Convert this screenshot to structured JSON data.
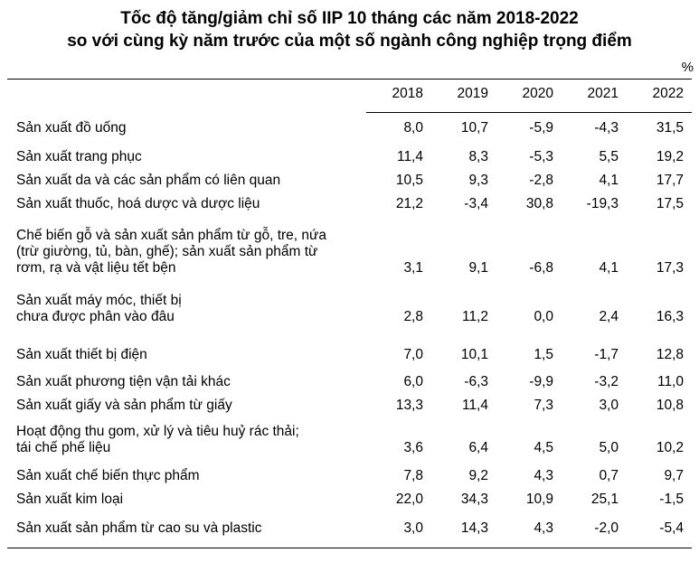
{
  "chart_data": {
    "type": "table",
    "title": [
      "Tốc độ tăng/giảm chỉ số IIP 10 tháng các năm 2018-2022",
      "so với cùng kỳ năm trước của một số ngành công nghiệp trọng điểm"
    ],
    "unit": "%",
    "columns": [
      "2018",
      "2019",
      "2020",
      "2021",
      "2022"
    ],
    "rows": [
      {
        "label": [
          "Sản xuất đồ uống"
        ],
        "values": [
          "8,0",
          "10,7",
          "-5,9",
          "-4,3",
          "31,5"
        ]
      },
      {
        "label": [
          "Sản xuất trang phục"
        ],
        "values": [
          "11,4",
          "8,3",
          "-5,3",
          "5,5",
          "19,2"
        ]
      },
      {
        "label": [
          "Sản xuất da và các sản phẩm có liên quan"
        ],
        "values": [
          "10,5",
          "9,3",
          "-2,8",
          "4,1",
          "17,7"
        ]
      },
      {
        "label": [
          "Sản xuất thuốc, hoá dược và dược liệu"
        ],
        "values": [
          "21,2",
          "-3,4",
          "30,8",
          "-19,3",
          "17,5"
        ]
      },
      {
        "label": [
          "Chế biến gỗ và sản xuất sản phẩm từ gỗ, tre, nứa",
          "(trừ giường, tủ, bàn, ghế); sản xuất sản phẩm từ",
          "rơm, rạ và vật liệu tết bện"
        ],
        "values": [
          "3,1",
          "9,1",
          "-6,8",
          "4,1",
          "17,3"
        ]
      },
      {
        "label": [
          "Sản xuất máy móc, thiết bị",
          "chưa được phân vào đâu"
        ],
        "values": [
          "2,8",
          "11,2",
          "0,0",
          "2,4",
          "16,3"
        ]
      },
      {
        "label": [
          "Sản xuất thiết bị điện"
        ],
        "values": [
          "7,0",
          "10,1",
          "1,5",
          "-1,7",
          "12,8"
        ]
      },
      {
        "label": [
          "Sản xuất phương tiện vận tải khác"
        ],
        "values": [
          "6,0",
          "-6,3",
          "-9,9",
          "-3,2",
          "11,0"
        ]
      },
      {
        "label": [
          "Sản xuất giấy và sản phẩm từ giấy"
        ],
        "values": [
          "13,3",
          "11,4",
          "7,3",
          "3,0",
          "10,8"
        ]
      },
      {
        "label": [
          "Hoạt động thu gom, xử lý và tiêu huỷ rác thải;",
          "tái chế phế liệu"
        ],
        "values": [
          "3,6",
          "6,4",
          "4,5",
          "5,0",
          "10,2"
        ]
      },
      {
        "label": [
          "Sản xuất chế biến thực phẩm"
        ],
        "values": [
          "7,8",
          "9,2",
          "4,3",
          "0,7",
          "9,7"
        ]
      },
      {
        "label": [
          "Sản xuất kim loại"
        ],
        "values": [
          "22,0",
          "34,3",
          "10,9",
          "25,1",
          "-1,5"
        ]
      },
      {
        "label": [
          "Sản xuất sản phẩm từ cao su và plastic"
        ],
        "values": [
          "3,0",
          "14,3",
          "4,3",
          "-2,0",
          "-5,4"
        ]
      }
    ]
  }
}
